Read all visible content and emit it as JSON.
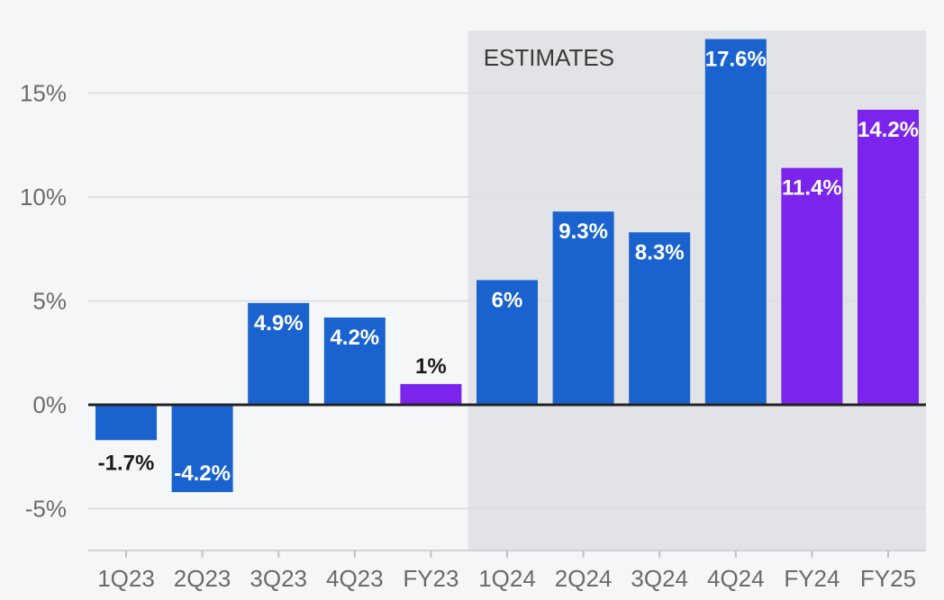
{
  "chart_data": {
    "type": "bar",
    "title": "",
    "xlabel": "",
    "ylabel": "",
    "ylim": [
      -7,
      17.5
    ],
    "yticks": [
      -5,
      0,
      5,
      10,
      15
    ],
    "ytick_labels": [
      "-5%",
      "0%",
      "5%",
      "10%",
      "15%"
    ],
    "categories": [
      "1Q23",
      "2Q23",
      "3Q23",
      "4Q23",
      "FY23",
      "1Q24",
      "2Q24",
      "3Q24",
      "4Q24",
      "FY24",
      "FY25"
    ],
    "values": [
      -1.7,
      -4.2,
      4.9,
      4.2,
      1,
      6,
      9.3,
      8.3,
      17.6,
      11.4,
      14.2
    ],
    "labels": [
      "-1.7%",
      "-4.2%",
      "4.9%",
      "4.2%",
      "1%",
      "6%",
      "9.3%",
      "8.3%",
      "17.6%",
      "11.4%",
      "14.2%"
    ],
    "kinds": [
      "quarter",
      "quarter",
      "quarter",
      "quarter",
      "fiscal_year",
      "quarter",
      "quarter",
      "quarter",
      "quarter",
      "fiscal_year",
      "fiscal_year"
    ],
    "estimates_region": {
      "label": "ESTIMATES",
      "start_category": "1Q24",
      "end_category": "FY25"
    },
    "grid": true,
    "colors": {
      "quarter": "#1a63cf",
      "fiscal_year": "#7a24ec",
      "estimates_shade": "#e1e3e6",
      "gridline": "#dcdfe3",
      "zero_line": "#222222",
      "label_dark": "#1b1b1b",
      "label_light": "#ffffff"
    }
  }
}
